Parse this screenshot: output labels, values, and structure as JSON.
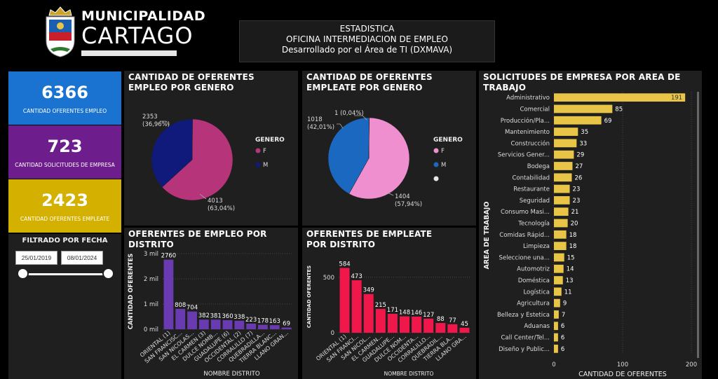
{
  "header": {
    "logo_line1": "MUNICIPALIDAD",
    "logo_line2": "CARTAGO",
    "title_line1": "ESTADISTICA",
    "title_line2": "OFICINA INTERMEDIACION DE EMPLEO",
    "title_line3": "Desarrollado por el Área de TI (DXMAVA)"
  },
  "kpis": [
    {
      "value": "6366",
      "label": "CANTIDAD OFERENTES EMPLEO",
      "color": "#1a73d0"
    },
    {
      "value": "723",
      "label": "CANTIDAD SOLICITUDES DE EMPRESA",
      "color": "#6e1e8c"
    },
    {
      "value": "2423",
      "label": "CANTIDAD OFERENTES EMPLEATE",
      "color": "#d4b000"
    }
  ],
  "filter": {
    "title": "FILTRADO POR FECHA",
    "start_date": "25/01/2019",
    "end_date": "08/01/2024",
    "range_fraction": [
      0.0,
      1.0
    ]
  },
  "chart_data": [
    {
      "id": "empleo_genero",
      "type": "pie",
      "title": "CANTIDAD DE OFERENTES EMPLEO POR GENERO",
      "legend_title": "GENERO",
      "legend_position": "right",
      "slices": [
        {
          "name": "F",
          "value": 4013,
          "label": "4013",
          "percent": "(63,04%)",
          "color": "#b5347a"
        },
        {
          "name": "M",
          "value": 2353,
          "label": "2353",
          "percent": "(36,96%)",
          "color": "#101a7a"
        }
      ]
    },
    {
      "id": "empleate_genero",
      "type": "pie",
      "title": "CANTIDAD DE OFERENTES EMPLEATE POR GENERO",
      "legend_title": "GENERO",
      "legend_position": "right",
      "slices": [
        {
          "name": "F",
          "value": 1404,
          "label": "1404",
          "percent": "(57,94%)",
          "color": "#ef8fcf"
        },
        {
          "name": "M",
          "value": 1018,
          "label": "1018",
          "percent": "(42,01%)",
          "color": "#1b68c0"
        },
        {
          "name": "",
          "value": 1,
          "label": "1 (0,04%)",
          "percent": "",
          "color": "#e6e6e6"
        }
      ]
    },
    {
      "id": "empleo_distrito",
      "type": "bar",
      "title": "OFERENTES DE EMPLEO POR DISTRITO",
      "xlabel": "NOMBRE DISTRITO",
      "ylabel": "CANTIDAD OFERENTES",
      "ylim": [
        0,
        3000
      ],
      "yticks": [
        0,
        1000,
        2000,
        3000
      ],
      "ytick_labels": [
        "0 mil",
        "1 mil",
        "2 mil",
        "3 mil"
      ],
      "color": "#6a3bb0",
      "categories": [
        "ORIENTAL (1)",
        "SAN FRANCISC...",
        "SAN NICOLAS...",
        "EL CARMEN (3)",
        "DULCE NOMB...",
        "GUADALUPE (6)",
        "OCCIDENTAL (2)",
        "CORRALILLO (7)",
        "QUEBRADILLA...",
        "TIERRA BLANC...",
        "LLANO GRAN..."
      ],
      "values": [
        2760,
        808,
        704,
        382,
        381,
        360,
        338,
        223,
        178,
        163,
        69
      ]
    },
    {
      "id": "empleate_distrito",
      "type": "bar",
      "title": "OFERENTES DE EMPLEATE POR DISTRITO",
      "xlabel": "NOMBRE DISTRITO",
      "ylabel": "CANTIDAD OFERENTES",
      "ylim": [
        0,
        650
      ],
      "yticks": [
        0,
        500
      ],
      "ytick_labels": [
        "0",
        "500"
      ],
      "color": "#f0174a",
      "categories": [
        "ORIENTAL (1)",
        "SAN FRANCI...",
        "SAN NICOL...",
        "EL CARMEN...",
        "GUADALUPE...",
        "DULCE NOM...",
        "OCCIDENTA...",
        "CORRALILLO...",
        "QUEBRADIL...",
        "TIERRA BLA...",
        "LLANO GRA..."
      ],
      "values": [
        584,
        473,
        349,
        215,
        171,
        148,
        146,
        127,
        88,
        77,
        45
      ]
    },
    {
      "id": "solicitudes_area",
      "type": "bar",
      "orientation": "horizontal",
      "title": "SOLICITUDES DE EMPRESA POR AREA DE TRABAJO",
      "xlabel": "CANTIDAD DE OFERENTES",
      "ylabel": "AREA DE TRABAJO",
      "xlim": [
        0,
        200
      ],
      "xticks": [
        0,
        100,
        200
      ],
      "color": "#e8c547",
      "categories": [
        "Administrativo",
        "Comercial",
        "Producción/Pla...",
        "Mantenimiento",
        "Construcción",
        "Servicios Gener...",
        "Bodega",
        "Contabilidad",
        "Restaurante",
        "Seguridad",
        "Consumo Masi...",
        "Tecnología",
        "Comidas Rápid...",
        "Limpieza",
        "Seleccione una...",
        "Automotriz",
        "Doméstica",
        "Logística",
        "Agricultura",
        "Belleza y Estetica",
        "Aduanas",
        "Call Center/Tel...",
        "Diseño y Public..."
      ],
      "values": [
        191,
        85,
        69,
        35,
        33,
        29,
        27,
        26,
        23,
        23,
        21,
        20,
        18,
        18,
        15,
        14,
        13,
        11,
        9,
        7,
        6,
        6,
        6
      ]
    }
  ]
}
